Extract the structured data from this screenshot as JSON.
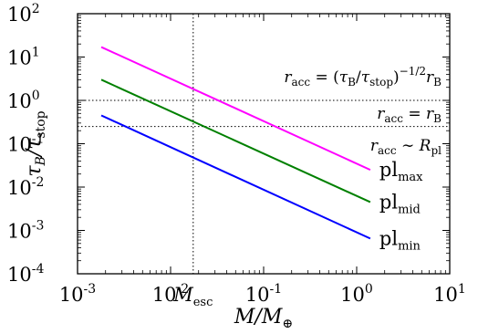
{
  "chart_data": {
    "type": "line",
    "xscale": "log",
    "yscale": "log",
    "xlim": [
      0.001,
      10
    ],
    "ylim": [
      0.0001,
      100
    ],
    "xlabel": {
      "main": "M/M",
      "sub": "⊕"
    },
    "ylabel": {
      "main": "τ",
      "sub1": "B",
      "mid": "/τ",
      "sub2": "stop"
    },
    "x_ticks": [
      {
        "value": 0.001,
        "base": "10",
        "exp": "-3"
      },
      {
        "value": 0.01,
        "base": "10",
        "exp": "-2"
      },
      {
        "value": 0.1,
        "base": "10",
        "exp": "-1"
      },
      {
        "value": 1,
        "base": "10",
        "exp": "0"
      },
      {
        "value": 10,
        "base": "10",
        "exp": "1"
      }
    ],
    "y_ticks": [
      {
        "value": 0.0001,
        "base": "10",
        "exp": "-4"
      },
      {
        "value": 0.001,
        "base": "10",
        "exp": "-3"
      },
      {
        "value": 0.01,
        "base": "10",
        "exp": "-2"
      },
      {
        "value": 0.1,
        "base": "10",
        "exp": "-1"
      },
      {
        "value": 1,
        "base": "10",
        "exp": "0"
      },
      {
        "value": 10,
        "base": "10",
        "exp": "1"
      },
      {
        "value": 100,
        "base": "10",
        "exp": "2"
      }
    ],
    "series": [
      {
        "name": "pl_max",
        "label_main": "pl",
        "label_sub": "max",
        "color": "#ff00ff",
        "x": [
          0.0018,
          1.4
        ],
        "y": [
          17,
          0.025
        ]
      },
      {
        "name": "pl_mid",
        "label_main": "pl",
        "label_sub": "mid",
        "color": "#008000",
        "x": [
          0.0018,
          1.4
        ],
        "y": [
          3.0,
          0.0045
        ]
      },
      {
        "name": "pl_min",
        "label_main": "pl",
        "label_sub": "min",
        "color": "#0000ff",
        "x": [
          0.0018,
          1.4
        ],
        "y": [
          0.45,
          0.00065
        ]
      }
    ],
    "reference_lines": [
      {
        "orientation": "vertical",
        "value": 0.0175,
        "label_main": "M",
        "label_sub": "esc",
        "style": "dotted"
      },
      {
        "orientation": "horizontal",
        "value": 1.0,
        "style": "dotted"
      },
      {
        "orientation": "horizontal",
        "value": 0.25,
        "style": "dotted"
      }
    ],
    "annotations": [
      {
        "id": "upper",
        "text": "r_acc = (τ_B/τ_stop)^{-1/2} r_B"
      },
      {
        "id": "middle",
        "text": "r_acc = r_B"
      },
      {
        "id": "lower",
        "text": "r_acc ∼ R_pl"
      }
    ],
    "grid": false,
    "legend": "none"
  }
}
